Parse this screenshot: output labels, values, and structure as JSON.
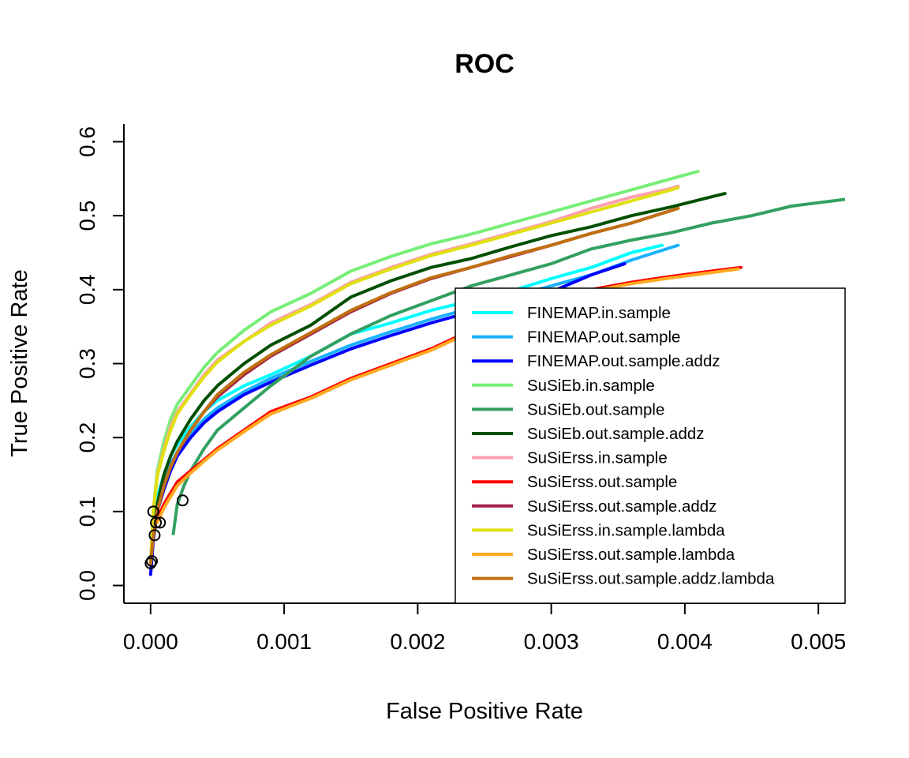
{
  "chart_data": {
    "type": "line",
    "title": "ROC",
    "xlabel": "False Positive Rate",
    "ylabel": "True Positive Rate",
    "xlim": [
      -0.0002,
      0.0052
    ],
    "ylim": [
      -0.024,
      0.624
    ],
    "xticks": [
      0,
      0.001,
      0.002,
      0.003,
      0.004,
      0.005
    ],
    "xtick_labels": [
      "0.000",
      "0.001",
      "0.002",
      "0.003",
      "0.004",
      "0.005"
    ],
    "yticks": [
      0,
      0.1,
      0.2,
      0.3,
      0.4,
      0.5,
      0.6
    ],
    "ytick_labels": [
      "0.0",
      "0.1",
      "0.2",
      "0.3",
      "0.4",
      "0.5",
      "0.6"
    ],
    "legend_position": "bottom-right",
    "series": [
      {
        "name": "FINEMAP.in.sample",
        "color": "#00FFFF",
        "x": [
          0,
          2e-05,
          5e-05,
          0.0001,
          0.00015,
          0.0002,
          0.0003,
          0.0004,
          0.0005,
          0.0007,
          0.0009,
          0.0012,
          0.0015,
          0.0018,
          0.0021,
          0.0024,
          0.0027,
          0.003,
          0.0033,
          0.0036,
          0.00383
        ],
        "y": [
          0.03,
          0.08,
          0.12,
          0.15,
          0.175,
          0.19,
          0.215,
          0.235,
          0.25,
          0.27,
          0.285,
          0.31,
          0.34,
          0.355,
          0.372,
          0.385,
          0.398,
          0.415,
          0.43,
          0.45,
          0.46
        ]
      },
      {
        "name": "FINEMAP.out.sample",
        "color": "#1AB2FF",
        "x": [
          0,
          2e-05,
          5e-05,
          0.0001,
          0.00015,
          0.0002,
          0.0003,
          0.0004,
          0.0005,
          0.0007,
          0.0009,
          0.0012,
          0.0015,
          0.0018,
          0.0021,
          0.0024,
          0.0027,
          0.003,
          0.0033,
          0.0036,
          0.00395
        ],
        "y": [
          0.03,
          0.075,
          0.11,
          0.14,
          0.165,
          0.18,
          0.205,
          0.225,
          0.24,
          0.262,
          0.28,
          0.303,
          0.325,
          0.343,
          0.36,
          0.375,
          0.39,
          0.405,
          0.42,
          0.44,
          0.46
        ]
      },
      {
        "name": "FINEMAP.out.sample.addz",
        "color": "#0000FF",
        "x": [
          0,
          2e-05,
          5e-05,
          0.0001,
          0.00015,
          0.0002,
          0.0003,
          0.0004,
          0.0005,
          0.0007,
          0.0009,
          0.0012,
          0.0015,
          0.0018,
          0.0021,
          0.0024,
          0.0027,
          0.003,
          0.0033,
          0.00355
        ],
        "y": [
          0.015,
          0.06,
          0.1,
          0.13,
          0.155,
          0.175,
          0.2,
          0.22,
          0.235,
          0.258,
          0.275,
          0.298,
          0.32,
          0.338,
          0.355,
          0.37,
          0.383,
          0.397,
          0.42,
          0.435
        ]
      },
      {
        "name": "SuSiEb.in.sample",
        "color": "#77EE77",
        "x": [
          0,
          2e-05,
          5e-05,
          0.0001,
          0.00015,
          0.0002,
          0.0003,
          0.0004,
          0.0005,
          0.0007,
          0.0009,
          0.0012,
          0.0015,
          0.0018,
          0.0021,
          0.0024,
          0.0027,
          0.003,
          0.0033,
          0.0036,
          0.0039,
          0.0041
        ],
        "y": [
          0.03,
          0.1,
          0.155,
          0.195,
          0.225,
          0.245,
          0.27,
          0.295,
          0.315,
          0.345,
          0.37,
          0.395,
          0.425,
          0.445,
          0.462,
          0.475,
          0.49,
          0.505,
          0.52,
          0.535,
          0.55,
          0.56
        ]
      },
      {
        "name": "SuSiEb.out.sample",
        "color": "#33A060",
        "x": [
          0.00017,
          0.0002,
          0.00025,
          0.0003,
          0.0004,
          0.0005,
          0.0007,
          0.0009,
          0.0012,
          0.0015,
          0.0018,
          0.0021,
          0.0024,
          0.0027,
          0.003,
          0.0033,
          0.0036,
          0.0039,
          0.0042,
          0.0045,
          0.0048,
          0.0052
        ],
        "y": [
          0.07,
          0.11,
          0.135,
          0.155,
          0.185,
          0.21,
          0.24,
          0.27,
          0.31,
          0.34,
          0.365,
          0.385,
          0.405,
          0.42,
          0.435,
          0.455,
          0.467,
          0.477,
          0.49,
          0.5,
          0.513,
          0.522
        ]
      },
      {
        "name": "SuSiEb.out.sample.addz",
        "color": "#005000",
        "x": [
          0,
          2e-05,
          5e-05,
          0.0001,
          0.00015,
          0.0002,
          0.0003,
          0.0004,
          0.0005,
          0.0007,
          0.0009,
          0.0012,
          0.0015,
          0.0018,
          0.0021,
          0.0024,
          0.0027,
          0.003,
          0.0033,
          0.0036,
          0.0039,
          0.0043
        ],
        "y": [
          0.03,
          0.07,
          0.11,
          0.15,
          0.175,
          0.195,
          0.225,
          0.25,
          0.27,
          0.3,
          0.325,
          0.352,
          0.39,
          0.412,
          0.43,
          0.442,
          0.458,
          0.473,
          0.485,
          0.5,
          0.512,
          0.53
        ]
      },
      {
        "name": "SuSiErss.in.sample",
        "color": "#FFA0B0",
        "x": [
          0,
          2e-05,
          5e-05,
          0.0001,
          0.00015,
          0.0002,
          0.0003,
          0.0004,
          0.0005,
          0.0007,
          0.0009,
          0.0012,
          0.0015,
          0.0018,
          0.0021,
          0.0024,
          0.0027,
          0.003,
          0.0033,
          0.0036,
          0.0039,
          0.00395
        ],
        "y": [
          0.03,
          0.1,
          0.15,
          0.185,
          0.215,
          0.235,
          0.26,
          0.285,
          0.305,
          0.33,
          0.355,
          0.38,
          0.41,
          0.43,
          0.448,
          0.462,
          0.477,
          0.492,
          0.51,
          0.525,
          0.537,
          0.54
        ]
      },
      {
        "name": "SuSiErss.out.sample",
        "color": "#FF0000",
        "x": [
          5e-05,
          0.0001,
          0.00015,
          0.0002,
          0.0003,
          0.0004,
          0.0005,
          0.0007,
          0.0009,
          0.0012,
          0.0015,
          0.0018,
          0.0021,
          0.0024,
          0.0027,
          0.003,
          0.0033,
          0.0036,
          0.0039,
          0.0042,
          0.00442
        ],
        "y": [
          0.09,
          0.11,
          0.125,
          0.14,
          0.155,
          0.17,
          0.185,
          0.21,
          0.235,
          0.255,
          0.28,
          0.3,
          0.32,
          0.345,
          0.365,
          0.385,
          0.4,
          0.41,
          0.418,
          0.425,
          0.43
        ]
      },
      {
        "name": "SuSiErss.out.sample.addz",
        "color": "#A0204A",
        "x": [
          0,
          2e-05,
          5e-05,
          0.0001,
          0.00015,
          0.0002,
          0.0003,
          0.0004,
          0.0005,
          0.0007,
          0.0009,
          0.0012,
          0.0015,
          0.0018,
          0.0021,
          0.0024,
          0.0027,
          0.003,
          0.0033,
          0.0036,
          0.00395
        ],
        "y": [
          0.03,
          0.065,
          0.1,
          0.135,
          0.16,
          0.18,
          0.21,
          0.235,
          0.255,
          0.285,
          0.31,
          0.34,
          0.37,
          0.395,
          0.415,
          0.43,
          0.445,
          0.46,
          0.476,
          0.49,
          0.51
        ]
      },
      {
        "name": "SuSiErss.in.sample.lambda",
        "color": "#E0E010",
        "x": [
          0,
          2e-05,
          5e-05,
          0.0001,
          0.00015,
          0.0002,
          0.0003,
          0.0004,
          0.0005,
          0.0007,
          0.0009,
          0.0012,
          0.0015,
          0.0018,
          0.0021,
          0.0024,
          0.0027,
          0.003,
          0.0033,
          0.0036,
          0.0039,
          0.00395
        ],
        "y": [
          0.03,
          0.1,
          0.148,
          0.182,
          0.21,
          0.232,
          0.258,
          0.282,
          0.302,
          0.33,
          0.352,
          0.378,
          0.408,
          0.428,
          0.446,
          0.46,
          0.475,
          0.49,
          0.505,
          0.52,
          0.535,
          0.538
        ]
      },
      {
        "name": "SuSiErss.out.sample.lambda",
        "color": "#FFAA20",
        "x": [
          5e-05,
          0.0001,
          0.00015,
          0.0002,
          0.0003,
          0.0004,
          0.0005,
          0.0007,
          0.0009,
          0.0012,
          0.0015,
          0.0018,
          0.0021,
          0.0024,
          0.0027,
          0.003,
          0.0033,
          0.0036,
          0.0039,
          0.0042,
          0.0044
        ],
        "y": [
          0.085,
          0.105,
          0.12,
          0.135,
          0.152,
          0.168,
          0.183,
          0.208,
          0.232,
          0.253,
          0.278,
          0.298,
          0.318,
          0.343,
          0.363,
          0.382,
          0.398,
          0.408,
          0.416,
          0.423,
          0.428
        ]
      },
      {
        "name": "SuSiErss.out.sample.addz.lambda",
        "color": "#C07010",
        "x": [
          0,
          2e-05,
          5e-05,
          0.0001,
          0.00015,
          0.0002,
          0.0003,
          0.0004,
          0.0005,
          0.0007,
          0.0009,
          0.0012,
          0.0015,
          0.0018,
          0.0021,
          0.0024,
          0.0027,
          0.003,
          0.0033,
          0.0036,
          0.00395
        ],
        "y": [
          0.03,
          0.065,
          0.1,
          0.135,
          0.16,
          0.18,
          0.21,
          0.235,
          0.258,
          0.288,
          0.312,
          0.342,
          0.372,
          0.396,
          0.416,
          0.43,
          0.446,
          0.46,
          0.476,
          0.49,
          0.51
        ]
      }
    ],
    "markers": {
      "x": [
        0.0,
        1e-05,
        2e-05,
        4e-05,
        7e-05,
        3e-05,
        0.00024
      ],
      "y": [
        0.03,
        0.033,
        0.1,
        0.085,
        0.085,
        0.068,
        0.115
      ]
    }
  }
}
